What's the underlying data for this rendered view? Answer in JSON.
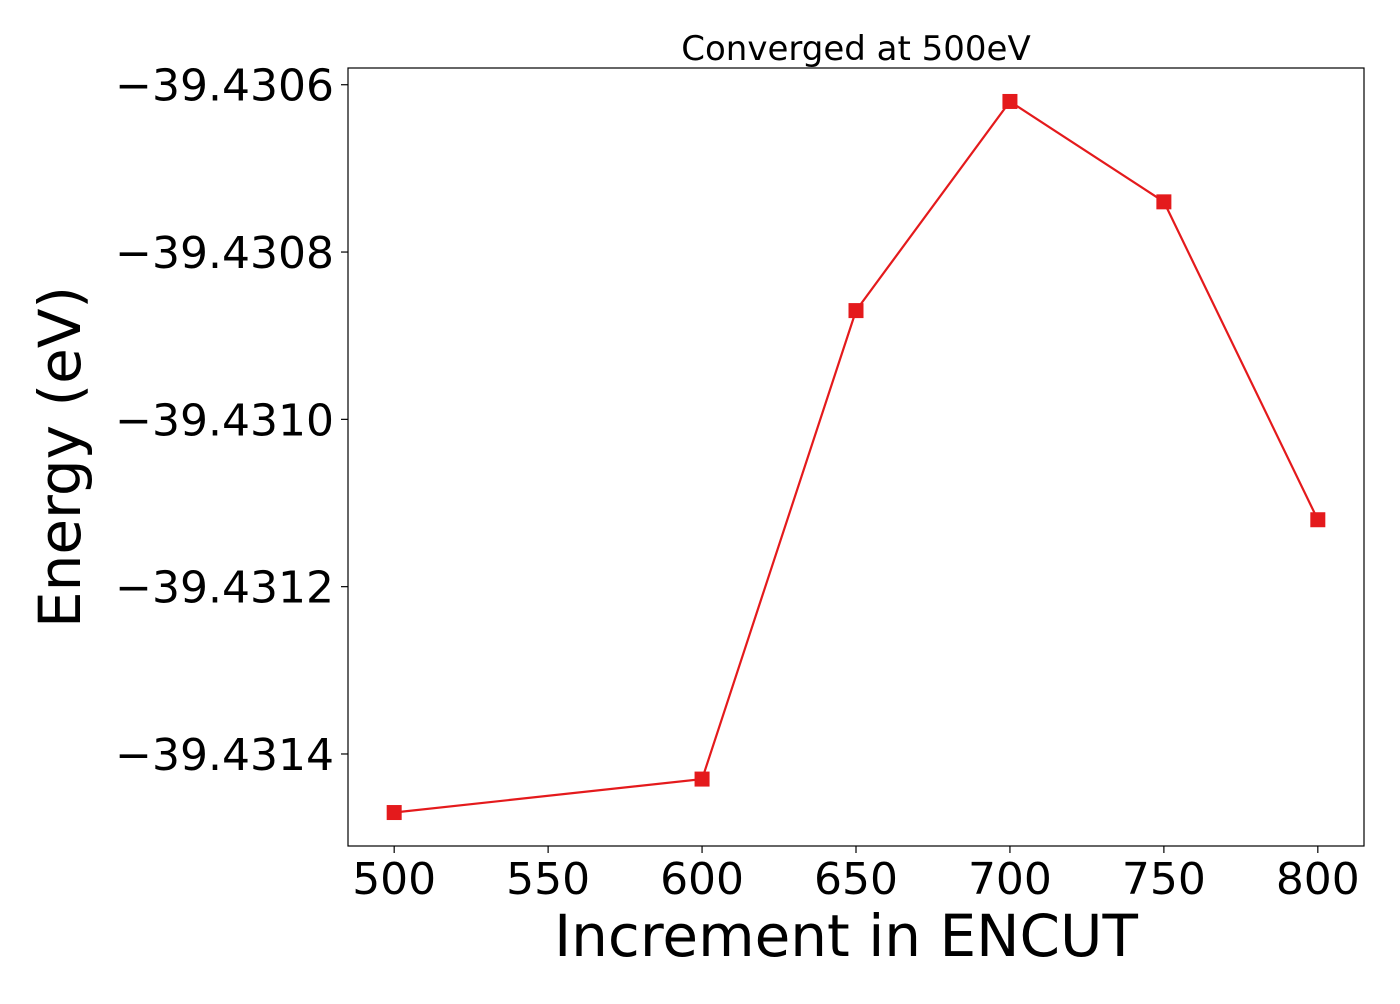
{
  "chart_data": {
    "type": "line",
    "title": "Converged at 500eV",
    "xlabel": "Increment in ENCUT",
    "ylabel": "Energy (eV)",
    "x": [
      500,
      600,
      650,
      700,
      750,
      800
    ],
    "series": [
      {
        "values": [
          -39.43147,
          -39.43143,
          -39.43087,
          -39.43062,
          -39.43074,
          -39.43112
        ],
        "color": "#e41a1c",
        "marker": "square"
      }
    ],
    "xticks": [
      "500",
      "550",
      "600",
      "650",
      "700",
      "750",
      "800"
    ],
    "yticks": [
      "−39.4306",
      "−39.4308",
      "−39.4310",
      "−39.4312",
      "−39.4314"
    ],
    "xtick_values": [
      500,
      550,
      600,
      650,
      700,
      750,
      800
    ],
    "ytick_values": [
      -39.4306,
      -39.4308,
      -39.431,
      -39.4312,
      -39.4314
    ],
    "xlim": [
      485,
      815
    ],
    "ylim": [
      -39.43151,
      -39.43058
    ],
    "grid": false,
    "legend": "none"
  }
}
